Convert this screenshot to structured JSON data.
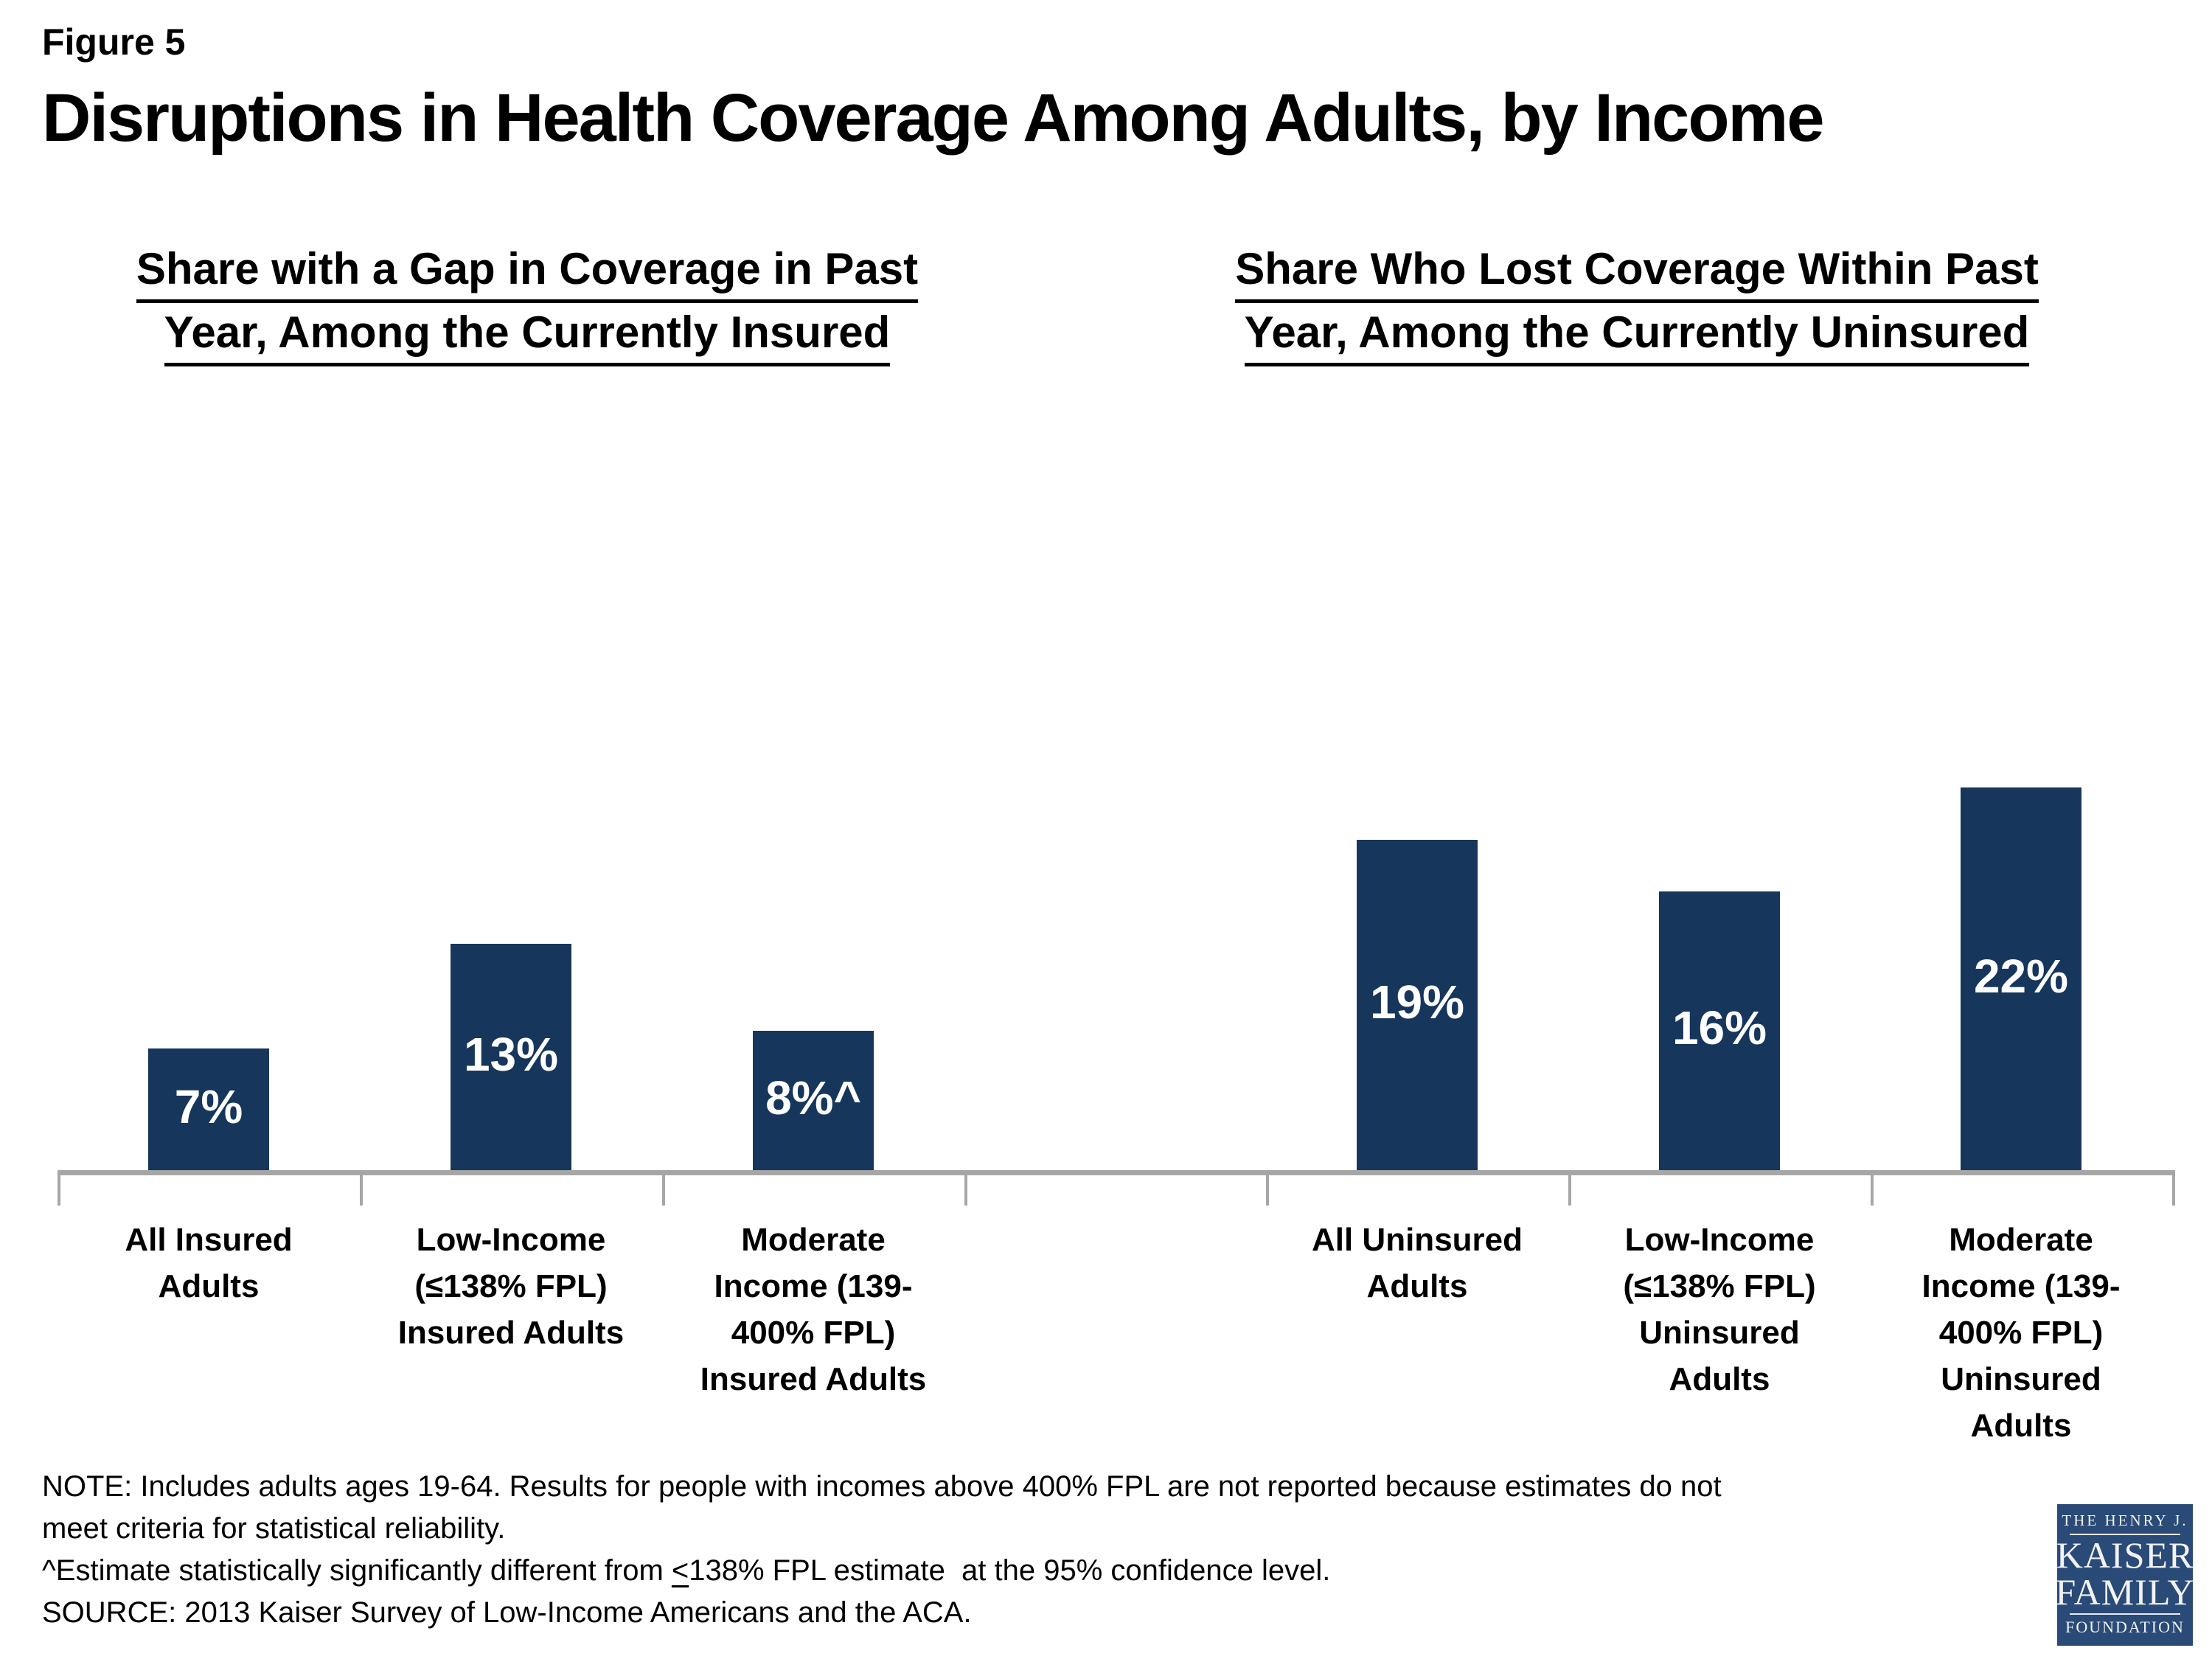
{
  "figure_label": "Figure 5",
  "title": "Disruptions in Health Coverage Among Adults, by Income",
  "panels": {
    "left": {
      "subtitle_line1": "Share with a Gap in Coverage in Past",
      "subtitle_line2": "Year, Among the Currently Insured"
    },
    "right": {
      "subtitle_line1": "Share Who Lost Coverage Within Past",
      "subtitle_line2": "Year, Among the Currently Uninsured"
    }
  },
  "chart_data": {
    "type": "bar",
    "unit": "%",
    "bar_color": "#16365C",
    "axis_color": "#A6A6A6",
    "ylim": [
      0,
      25
    ],
    "grid": false,
    "value_labels_position": "inside-center",
    "series": [
      {
        "name": "Share with a Gap in Coverage in Past Year, Among the Currently Insured",
        "categories": [
          "All Insured Adults",
          "Low-Income (≤138% FPL) Insured Adults",
          "Moderate Income (139-400% FPL) Insured Adults"
        ],
        "values": [
          7,
          13,
          8
        ],
        "data_labels": [
          "7%",
          "13%",
          "8%^"
        ]
      },
      {
        "name": "Share Who Lost Coverage Within Past Year, Among the Currently Uninsured",
        "categories": [
          "All Uninsured Adults",
          "Low-Income (≤138% FPL) Uninsured Adults",
          "Moderate Income (139-400% FPL) Uninsured Adults"
        ],
        "values": [
          19,
          16,
          22
        ],
        "data_labels": [
          "19%",
          "16%",
          "22%"
        ]
      }
    ],
    "tick_labels": [
      "All Insured\nAdults",
      "Low-Income\n(≤138% FPL)\nInsured Adults",
      "Moderate\nIncome (139-\n400% FPL)\nInsured Adults",
      "All Uninsured\nAdults",
      "Low-Income\n(≤138% FPL)\nUninsured\nAdults",
      "Moderate\nIncome (139-\n400% FPL)\nUninsured\nAdults"
    ]
  },
  "notes": {
    "line1": "NOTE: Includes adults ages 19-64. Results for people with incomes above 400% FPL are not reported because estimates do not",
    "line2": "meet criteria for statistical reliability.",
    "line3_prefix": "^Estimate statistically significantly different from ",
    "line3_leq": "<",
    "line3_suffix": "138% FPL estimate  at the 95% confidence level.",
    "line4": "SOURCE: 2013 Kaiser Survey of Low-Income Americans and the ACA."
  },
  "logo": {
    "line1": "THE HENRY J.",
    "line2": "KAISER",
    "line3": "FAMILY",
    "line4": "FOUNDATION",
    "bg_color": "#2A4A77"
  }
}
